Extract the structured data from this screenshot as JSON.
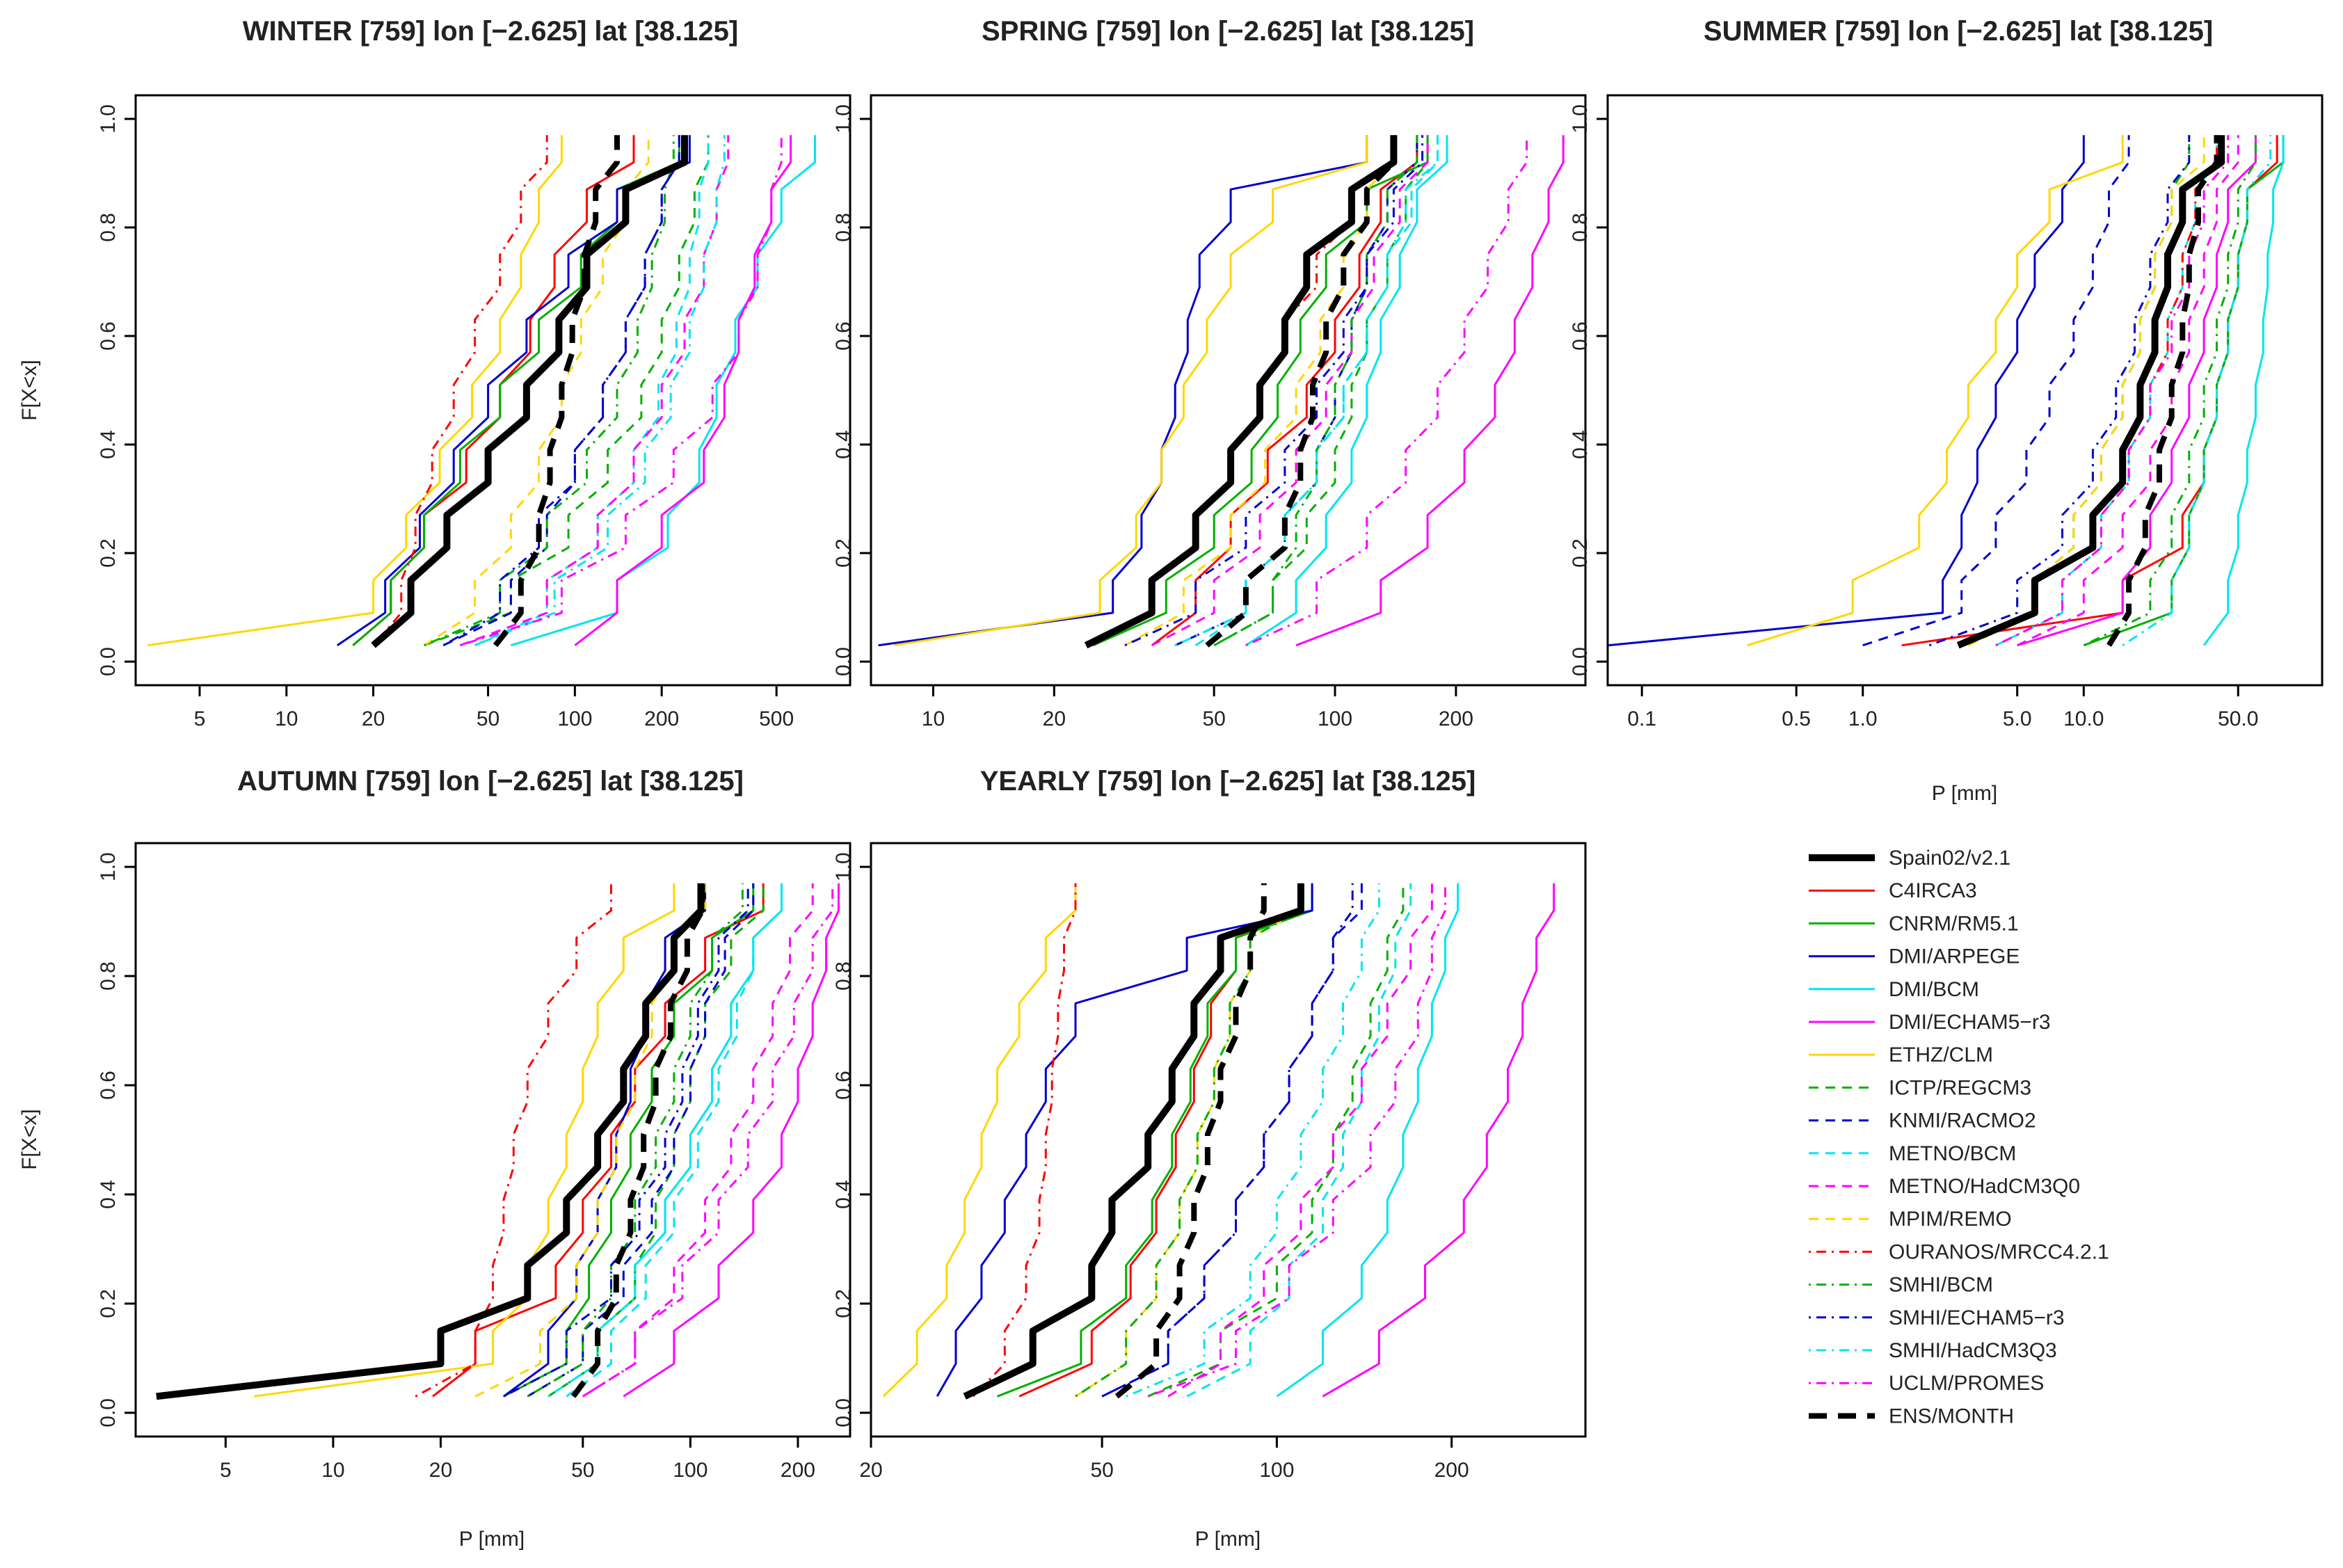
{
  "figure": {
    "ylabel": "F[X<x]",
    "xlabel": "P [mm]"
  },
  "chart_data": [
    {
      "type": "line",
      "title": "WINTER [759]  lon [−2.625]  lat [38.125]",
      "xscale": "log",
      "xlim": [
        3,
        900
      ],
      "ylim": [
        0,
        1
      ],
      "xticks": [
        5,
        10,
        20,
        50,
        100,
        200,
        500
      ],
      "yticks": [
        0.0,
        0.2,
        0.4,
        0.6,
        0.8,
        1.0
      ],
      "xlabel": "",
      "ylabel": "F[X<x]",
      "quantiles": {
        "Spain02/v2.1": [
          20,
          27,
          36,
          50,
          68,
          88,
          110,
          150,
          240
        ],
        "C4IRCA3": [
          17,
          23,
          30,
          42,
          55,
          70,
          85,
          110,
          160
        ],
        "CNRM/RM5.1": [
          17,
          23,
          30,
          40,
          55,
          75,
          105,
          140,
          230
        ],
        "DMI/ARPEGE": [
          15,
          22,
          29,
          38,
          50,
          68,
          95,
          140,
          250
        ],
        "DMI/BCM": [
          60,
          140,
          210,
          270,
          310,
          360,
          430,
          520,
          680
        ],
        "DMI/ECHAM5-r3": [
          100,
          140,
          200,
          280,
          330,
          370,
          420,
          480,
          560
        ],
        "ETHZ/CLM": [
          3.3,
          20,
          26,
          34,
          44,
          55,
          65,
          75,
          90
        ],
        "ICTP/REGCM3": [
          30,
          60,
          95,
          130,
          170,
          200,
          230,
          260,
          290
        ],
        "KNMI/RACMO2": [
          35,
          60,
          80,
          100,
          125,
          150,
          175,
          200,
          230
        ],
        "METNO/BCM": [
          45,
          80,
          120,
          160,
          195,
          225,
          250,
          270,
          290
        ],
        "METNO/HadCM3Q0": [
          40,
          80,
          120,
          160,
          200,
          240,
          280,
          310,
          340
        ],
        "MPIM/REMO": [
          30,
          45,
          60,
          75,
          90,
          105,
          125,
          150,
          180
        ],
        "OURANOS/MRCC4.2.1": [
          20,
          25,
          28,
          32,
          38,
          45,
          55,
          65,
          80
        ],
        "SMHI/BCM": [
          30,
          55,
          80,
          110,
          140,
          165,
          185,
          205,
          220
        ],
        "SMHI/ECHAM5-r3": [
          35,
          55,
          75,
          100,
          125,
          150,
          175,
          200,
          230
        ],
        "SMHI/HadCM3Q3": [
          45,
          85,
          130,
          175,
          215,
          250,
          280,
          310,
          330
        ],
        "UCLM/PROMES": [
          40,
          90,
          150,
          220,
          300,
          370,
          430,
          480,
          520
        ],
        "ENS/MONTH": [
          53,
          65,
          75,
          82,
          90,
          98,
          108,
          118,
          140
        ]
      }
    },
    {
      "type": "line",
      "title": "SPRING [759]  lon [−2.625]  lat [38.125]",
      "xscale": "log",
      "xlim": [
        7,
        420
      ],
      "ylim": [
        0,
        1
      ],
      "xticks": [
        10,
        20,
        50,
        100,
        200
      ],
      "yticks": [
        0.0,
        0.2,
        0.4,
        0.6,
        0.8,
        1.0
      ],
      "xlabel": "",
      "ylabel": "",
      "quantiles": {
        "Spain02/v2.1": [
          24,
          35,
          45,
          55,
          65,
          75,
          85,
          110,
          140
        ],
        "C4IRCA3": [
          35,
          45,
          55,
          68,
          85,
          100,
          115,
          130,
          160
        ],
        "CNRM/RM5.1": [
          25,
          38,
          50,
          62,
          72,
          82,
          95,
          120,
          170
        ],
        "DMI/ARPEGE": [
          7.3,
          28,
          33,
          37,
          40,
          43,
          46,
          55,
          120
        ],
        "DMI/BCM": [
          60,
          80,
          95,
          110,
          120,
          130,
          145,
          160,
          190
        ],
        "DMI/ECHAM5-r3": [
          80,
          130,
          170,
          210,
          250,
          280,
          310,
          340,
          370
        ],
        "ETHZ/CLM": [
          8,
          26,
          32,
          37,
          42,
          48,
          55,
          70,
          120
        ],
        "ICTP/REGCM3": [
          50,
          70,
          85,
          100,
          110,
          120,
          135,
          150,
          170
        ],
        "KNMI/RACMO2": [
          40,
          60,
          75,
          90,
          100,
          110,
          120,
          135,
          160
        ],
        "METNO/BCM": [
          45,
          60,
          75,
          90,
          105,
          120,
          135,
          155,
          180
        ],
        "METNO/HadCM3Q0": [
          35,
          50,
          65,
          80,
          95,
          110,
          125,
          145,
          170
        ],
        "MPIM/REMO": [
          30,
          42,
          55,
          67,
          80,
          92,
          105,
          120,
          140
        ],
        "OURANOS/MRCC4.2.1": [
          25,
          35,
          45,
          55,
          65,
          75,
          90,
          110,
          140
        ],
        "SMHI/BCM": [
          50,
          70,
          80,
          90,
          100,
          110,
          120,
          135,
          160
        ],
        "SMHI/ECHAM5-r3": [
          30,
          45,
          60,
          75,
          90,
          105,
          120,
          140,
          165
        ],
        "SMHI/HadCM3Q3": [
          40,
          60,
          75,
          90,
          105,
          120,
          135,
          150,
          180
        ],
        "UCLM/PROMES": [
          60,
          90,
          120,
          150,
          180,
          210,
          240,
          270,
          300
        ],
        "ENS/MONTH": [
          48,
          60,
          75,
          82,
          88,
          95,
          105,
          120,
          140
        ]
      }
    },
    {
      "type": "line",
      "title": "SUMMER [759]  lon [−2.625]  lat [38.125]",
      "xscale": "log",
      "xlim": [
        0.07,
        120
      ],
      "ylim": [
        0,
        1
      ],
      "xticks": [
        0.1,
        0.5,
        1.0,
        5.0,
        10.0,
        50.0
      ],
      "xticklabels": [
        "0.1",
        "0.5",
        "1.0",
        "5.0",
        "10.0",
        "50.0"
      ],
      "yticks": [
        0.0,
        0.2,
        0.4,
        0.6,
        0.8,
        1.0
      ],
      "xlabel": "P [mm]",
      "ylabel": "",
      "quantiles": {
        "Spain02/v2.1": [
          2.7,
          6,
          11,
          15,
          18,
          21,
          24,
          28,
          42
        ],
        "C4IRCA3": [
          1.5,
          15,
          28,
          35,
          40,
          45,
          50,
          55,
          75
        ],
        "CNRM/RM5.1": [
          10,
          25,
          30,
          35,
          40,
          45,
          50,
          55,
          80
        ],
        "DMI/ARPEGE": [
          0.07,
          2.3,
          2.8,
          3.3,
          4,
          5,
          6,
          8,
          10
        ],
        "DMI/BCM": [
          35,
          45,
          50,
          55,
          60,
          65,
          68,
          72,
          80
        ],
        "DMI/ECHAM5-r3": [
          5,
          15,
          20,
          25,
          30,
          35,
          40,
          45,
          60
        ],
        "ETHZ/CLM": [
          0.3,
          0.9,
          1.8,
          2.4,
          3,
          4,
          5,
          7,
          15
        ],
        "ICTP/REGCM3": [
          3,
          6,
          9,
          12,
          15,
          18,
          21,
          25,
          30
        ],
        "KNMI/RACMO2": [
          1,
          2.8,
          4,
          5.5,
          7,
          9,
          11,
          13,
          16
        ],
        "METNO/BCM": [
          4,
          8,
          12,
          16,
          20,
          24,
          28,
          32,
          40
        ],
        "METNO/HadCM3Q0": [
          5,
          10,
          15,
          20,
          25,
          30,
          35,
          40,
          50
        ],
        "MPIM/REMO": [
          3,
          6,
          9,
          12,
          15,
          18,
          21,
          25,
          35
        ],
        "OURANOS/MRCC4.2.1": [
          4,
          8,
          12,
          16,
          20,
          24,
          28,
          32,
          40
        ],
        "SMHI/BCM": [
          10,
          20,
          25,
          30,
          35,
          40,
          45,
          50,
          60
        ],
        "SMHI/ECHAM5-r3": [
          2,
          5,
          8,
          11,
          14,
          17,
          20,
          24,
          30
        ],
        "SMHI/HadCM3Q3": [
          15,
          25,
          30,
          35,
          40,
          45,
          50,
          55,
          70
        ],
        "UCLM/PROMES": [
          4,
          8,
          12,
          16,
          20,
          25,
          30,
          35,
          45
        ],
        "ENS/MONTH": [
          13,
          16,
          19,
          22,
          25,
          28,
          30,
          33,
          40
        ]
      }
    },
    {
      "type": "line",
      "title": "AUTUMN [759]  lon [−2.625]  lat [38.125]",
      "xscale": "log",
      "xlim": [
        2.8,
        280
      ],
      "ylim": [
        0,
        1
      ],
      "xticks": [
        5,
        10,
        20,
        50,
        100,
        200
      ],
      "yticks": [
        0.0,
        0.2,
        0.4,
        0.6,
        0.8,
        1.0
      ],
      "xlabel": "P [mm]",
      "ylabel": "F[X<x]",
      "quantiles": {
        "Spain02/v2.1": [
          3.2,
          20,
          35,
          45,
          55,
          65,
          75,
          90,
          107
        ],
        "C4IRCA3": [
          19,
          25,
          42,
          50,
          60,
          70,
          85,
          110,
          160
        ],
        "CNRM/RM5.1": [
          30,
          45,
          52,
          60,
          68,
          78,
          90,
          115,
          150
        ],
        "DMI/ARPEGE": [
          30,
          40,
          48,
          55,
          62,
          68,
          75,
          85,
          110
        ],
        "DMI/BCM": [
          40,
          55,
          70,
          85,
          100,
          115,
          130,
          150,
          180
        ],
        "DMI/ECHAM5-r3": [
          65,
          90,
          120,
          150,
          180,
          200,
          220,
          240,
          260
        ],
        "ETHZ/CLM": [
          6,
          28,
          35,
          40,
          45,
          50,
          55,
          65,
          90
        ],
        "ICTP/REGCM3": [
          40,
          55,
          70,
          80,
          90,
          100,
          110,
          130,
          160
        ],
        "KNMI/RACMO2": [
          35,
          50,
          65,
          78,
          90,
          100,
          110,
          125,
          150
        ],
        "METNO/BCM": [
          45,
          60,
          75,
          90,
          105,
          120,
          135,
          150,
          180
        ],
        "METNO/HadCM3Q0": [
          50,
          70,
          90,
          110,
          130,
          150,
          170,
          190,
          220
        ],
        "MPIM/REMO": [
          25,
          38,
          48,
          55,
          62,
          70,
          78,
          90,
          110
        ],
        "OURANOS/MRCC4.2.1": [
          17,
          25,
          28,
          30,
          32,
          35,
          40,
          48,
          60
        ],
        "SMHI/BCM": [
          35,
          50,
          60,
          70,
          80,
          90,
          100,
          115,
          140
        ],
        "SMHI/ECHAM5-r3": [
          30,
          45,
          60,
          72,
          85,
          95,
          105,
          120,
          145
        ],
        "SMHI/HadCM3Q3": [
          40,
          55,
          70,
          85,
          100,
          115,
          130,
          150,
          180
        ],
        "UCLM/PROMES": [
          50,
          70,
          95,
          120,
          145,
          170,
          195,
          220,
          250
        ],
        "ENS/MONTH": [
          47,
          55,
          62,
          68,
          74,
          80,
          88,
          98,
          108
        ]
      }
    },
    {
      "type": "line",
      "title": "YEARLY [759]  lon [−2.625]  lat [38.125]",
      "xscale": "log",
      "xlim": [
        20,
        340
      ],
      "ylim": [
        0,
        1
      ],
      "xticks": [
        20,
        50,
        100,
        200
      ],
      "yticks": [
        0.0,
        0.2,
        0.4,
        0.6,
        0.8,
        1.0
      ],
      "xlabel": "P [mm]",
      "ylabel": "",
      "quantiles": {
        "Spain02/v2.1": [
          29,
          38,
          48,
          52,
          60,
          66,
          72,
          80,
          110
        ],
        "C4IRCA3": [
          36,
          48,
          56,
          62,
          67,
          72,
          77,
          85,
          110
        ],
        "CNRM/RM5.1": [
          33,
          46,
          55,
          61,
          66,
          71,
          76,
          85,
          115
        ],
        "DMI/ARPEGE": [
          26,
          28,
          31,
          34,
          37,
          40,
          45,
          70,
          115
        ],
        "DMI/BCM": [
          100,
          120,
          140,
          155,
          165,
          175,
          185,
          195,
          205
        ],
        "DMI/ECHAM5-r3": [
          120,
          150,
          180,
          210,
          230,
          250,
          265,
          280,
          300
        ],
        "ETHZ/CLM": [
          21,
          24,
          27,
          29,
          31,
          33,
          36,
          40,
          45
        ],
        "ICTP/REGCM3": [
          60,
          80,
          100,
          115,
          125,
          135,
          145,
          155,
          165
        ],
        "KNMI/RACMO2": [
          50,
          65,
          75,
          85,
          95,
          105,
          115,
          125,
          140
        ],
        "METNO/BCM": [
          70,
          90,
          105,
          120,
          130,
          140,
          150,
          160,
          170
        ],
        "METNO/HadCM3Q0": [
          65,
          80,
          95,
          110,
          125,
          140,
          155,
          170,
          185
        ],
        "MPIM/REMO": [
          45,
          55,
          62,
          68,
          73,
          78,
          83,
          90,
          110
        ],
        "OURANOS/MRCC4.2.1": [
          30,
          34,
          37,
          39,
          40,
          41,
          42,
          43,
          45
        ],
        "SMHI/BCM": [
          45,
          55,
          62,
          68,
          73,
          78,
          83,
          90,
          110
        ],
        "SMHI/ECHAM5-r3": [
          50,
          65,
          75,
          85,
          95,
          105,
          115,
          125,
          135
        ],
        "SMHI/HadCM3Q3": [
          55,
          75,
          90,
          100,
          110,
          120,
          130,
          140,
          150
        ],
        "UCLM/PROMES": [
          60,
          85,
          105,
          125,
          145,
          160,
          175,
          185,
          195
        ],
        "ENS/MONTH": [
          53,
          62,
          68,
          72,
          76,
          80,
          85,
          90,
          95
        ]
      }
    }
  ],
  "legend": {
    "position": "bottom-right",
    "items": [
      {
        "label": "Spain02/v2.1",
        "color": "#000000",
        "dash": "solid",
        "width": 10
      },
      {
        "label": "C4IRCA3",
        "color": "#ff0000",
        "dash": "solid",
        "width": 3
      },
      {
        "label": "CNRM/RM5.1",
        "color": "#00b000",
        "dash": "solid",
        "width": 3
      },
      {
        "label": "DMI/ARPEGE",
        "color": "#0000cc",
        "dash": "solid",
        "width": 3
      },
      {
        "label": "DMI/BCM",
        "color": "#00e5ee",
        "dash": "solid",
        "width": 3
      },
      {
        "label": "DMI/ECHAM5−r3",
        "color": "#ff00ff",
        "dash": "solid",
        "width": 3
      },
      {
        "label": "ETHZ/CLM",
        "color": "#ffd700",
        "dash": "solid",
        "width": 3
      },
      {
        "label": "ICTP/REGCM3",
        "color": "#00b000",
        "dash": "dashed",
        "width": 3
      },
      {
        "label": "KNMI/RACMO2",
        "color": "#0000cc",
        "dash": "dashed",
        "width": 3
      },
      {
        "label": "METNO/BCM",
        "color": "#00e5ee",
        "dash": "dashed",
        "width": 3
      },
      {
        "label": "METNO/HadCM3Q0",
        "color": "#ff00ff",
        "dash": "dashed",
        "width": 3
      },
      {
        "label": "MPIM/REMO",
        "color": "#ffd700",
        "dash": "dashed",
        "width": 3
      },
      {
        "label": "OURANOS/MRCC4.2.1",
        "color": "#ff0000",
        "dash": "dotdash",
        "width": 3
      },
      {
        "label": "SMHI/BCM",
        "color": "#00b000",
        "dash": "dotdash",
        "width": 3
      },
      {
        "label": "SMHI/ECHAM5−r3",
        "color": "#0000cc",
        "dash": "dotdash",
        "width": 3
      },
      {
        "label": "SMHI/HadCM3Q3",
        "color": "#00e5ee",
        "dash": "dotdash",
        "width": 3
      },
      {
        "label": "UCLM/PROMES",
        "color": "#ff00ff",
        "dash": "dotdash",
        "width": 3
      },
      {
        "label": "ENS/MONTH",
        "color": "#000000",
        "dash": "dashed",
        "width": 8
      }
    ]
  }
}
